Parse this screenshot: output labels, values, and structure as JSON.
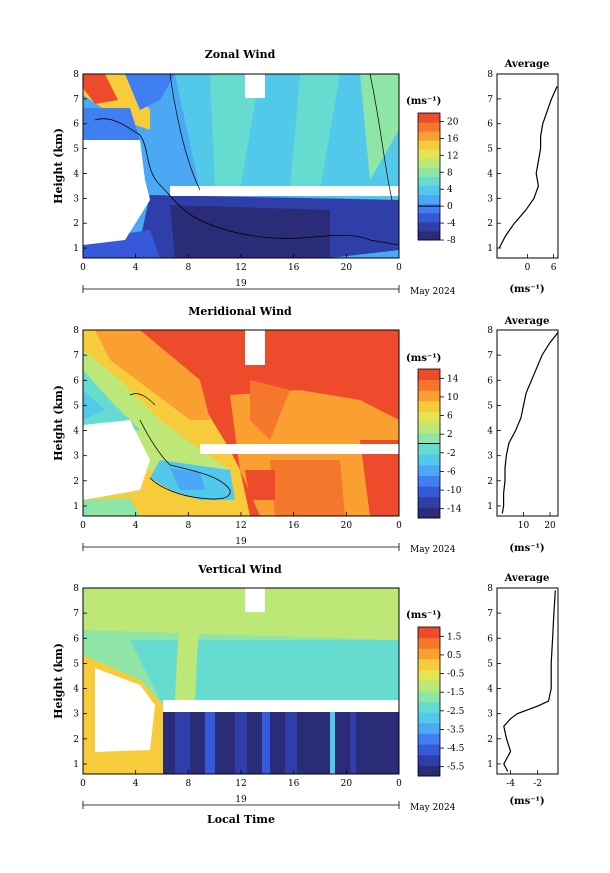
{
  "panels": [
    {
      "title": "Zonal Wind",
      "ylabel": "Height (km)",
      "yticks": [
        "1",
        "2",
        "3",
        "4",
        "5",
        "6",
        "7",
        "8"
      ],
      "xticks": [
        "0",
        "4",
        "8",
        "12",
        "16",
        "20",
        "0"
      ],
      "day_label": "19",
      "date_label": "May 2024",
      "unit_label": "(ms⁻¹)",
      "cbar_ticks": [
        "20",
        "16",
        "12",
        "8",
        "4",
        "0",
        "-4",
        "-8"
      ],
      "avg_title": "Average",
      "avg_xticks": [
        "0",
        "6"
      ],
      "avg_xlabel": "(ms⁻¹)"
    },
    {
      "title": "Meridional Wind",
      "ylabel": "Height (km)",
      "yticks": [
        "1",
        "2",
        "3",
        "4",
        "5",
        "6",
        "7",
        "8"
      ],
      "xticks": [
        "0",
        "4",
        "8",
        "12",
        "16",
        "20",
        "0"
      ],
      "day_label": "19",
      "date_label": "May 2024",
      "unit_label": "(ms⁻¹)",
      "cbar_ticks": [
        "14",
        "10",
        "6",
        "2",
        "-2",
        "-6",
        "-10",
        "-14"
      ],
      "avg_title": "Average",
      "avg_xticks": [
        "10",
        "20"
      ],
      "avg_xlabel": "(ms⁻¹)"
    },
    {
      "title": "Vertical Wind",
      "ylabel": "Height (km)",
      "yticks": [
        "1",
        "2",
        "3",
        "4",
        "5",
        "6",
        "7",
        "8"
      ],
      "xticks": [
        "0",
        "4",
        "8",
        "12",
        "16",
        "20",
        "0"
      ],
      "day_label": "19",
      "date_label": "May 2024",
      "unit_label": "(ms⁻¹)",
      "cbar_ticks": [
        "1.5",
        "0.5",
        "-0.5",
        "-1.5",
        "-2.5",
        "-3.5",
        "-4.5",
        "-5.5"
      ],
      "avg_title": "Average",
      "avg_xticks": [
        "-4",
        "-2"
      ],
      "avg_xlabel": "(ms⁻¹)"
    }
  ],
  "xlabel": "Local Time",
  "colors": {
    "jet": [
      "#2b2c78",
      "#2f3ea9",
      "#3559d8",
      "#3f7ff2",
      "#4aa8f5",
      "#52c8ea",
      "#66dcd0",
      "#8fe5a6",
      "#bde878",
      "#e4e551",
      "#f7cc3a",
      "#f9a030",
      "#f5772b",
      "#ee4a2c"
    ]
  },
  "chart_data": [
    {
      "type": "heatmap",
      "title": "Zonal Wind",
      "xlabel": "Local Time",
      "ylabel": "Height (km)",
      "x_range": [
        0,
        24
      ],
      "y_range": [
        0.6,
        8
      ],
      "color_range": [
        -8,
        22
      ],
      "colorbar_ticks": [
        -8,
        -4,
        0,
        4,
        8,
        12,
        16,
        20
      ],
      "zero_contour": true,
      "average_profile": {
        "title": "Average",
        "x_range": [
          -7,
          7
        ],
        "height": [
          1.0,
          1.5,
          2.0,
          2.5,
          3.0,
          3.5,
          4.0,
          4.5,
          5.0,
          5.5,
          6.0,
          6.5,
          7.0,
          7.5
        ],
        "value": [
          -6.5,
          -5.0,
          -3.0,
          -0.5,
          1.5,
          2.5,
          2.0,
          2.5,
          3.0,
          3.0,
          3.5,
          4.5,
          5.5,
          6.8
        ]
      }
    },
    {
      "type": "heatmap",
      "title": "Meridional Wind",
      "xlabel": "Local Time",
      "ylabel": "Height (km)",
      "x_range": [
        0,
        24
      ],
      "y_range": [
        0.6,
        8
      ],
      "color_range": [
        -16,
        16
      ],
      "colorbar_ticks": [
        -14,
        -10,
        -6,
        -2,
        2,
        6,
        10,
        14
      ],
      "zero_contour": true,
      "average_profile": {
        "title": "Average",
        "x_range": [
          0,
          23
        ],
        "height": [
          0.7,
          1.0,
          1.5,
          2.0,
          2.5,
          3.0,
          3.5,
          4.0,
          4.5,
          5.0,
          5.5,
          6.0,
          6.5,
          7.0,
          7.5,
          7.9
        ],
        "value": [
          2.0,
          2.5,
          2.5,
          3.0,
          3.0,
          3.5,
          4.5,
          7.0,
          9.0,
          10.0,
          11.0,
          13.0,
          15.0,
          17.0,
          20.0,
          23.0
        ]
      }
    },
    {
      "type": "heatmap",
      "title": "Vertical Wind",
      "xlabel": "Local Time",
      "ylabel": "Height (km)",
      "x_range": [
        0,
        24
      ],
      "y_range": [
        0.6,
        8
      ],
      "color_range": [
        -6,
        2
      ],
      "colorbar_ticks": [
        -5.5,
        -4.5,
        -3.5,
        -2.5,
        -1.5,
        -0.5,
        0.5,
        1.5
      ],
      "average_profile": {
        "title": "Average",
        "x_range": [
          -5,
          -0.5
        ],
        "height": [
          0.7,
          1.0,
          1.5,
          2.0,
          2.5,
          2.8,
          3.0,
          3.3,
          3.5,
          4.0,
          5.0,
          6.0,
          7.0,
          7.9
        ],
        "value": [
          -4.2,
          -4.5,
          -4.0,
          -4.3,
          -4.5,
          -4.0,
          -3.5,
          -2.0,
          -1.2,
          -1.0,
          -1.0,
          -0.9,
          -0.8,
          -0.7
        ]
      }
    }
  ]
}
